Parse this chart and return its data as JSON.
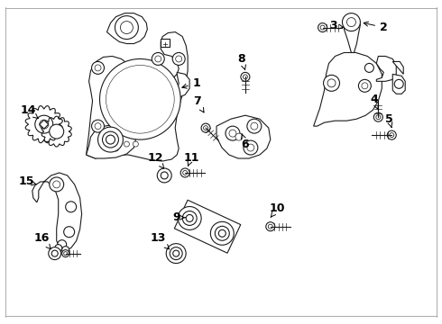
{
  "bg_color": "#ffffff",
  "line_color": "#1a1a1a",
  "fig_width": 4.9,
  "fig_height": 3.6,
  "dpi": 100,
  "border_color": "#cccccc"
}
